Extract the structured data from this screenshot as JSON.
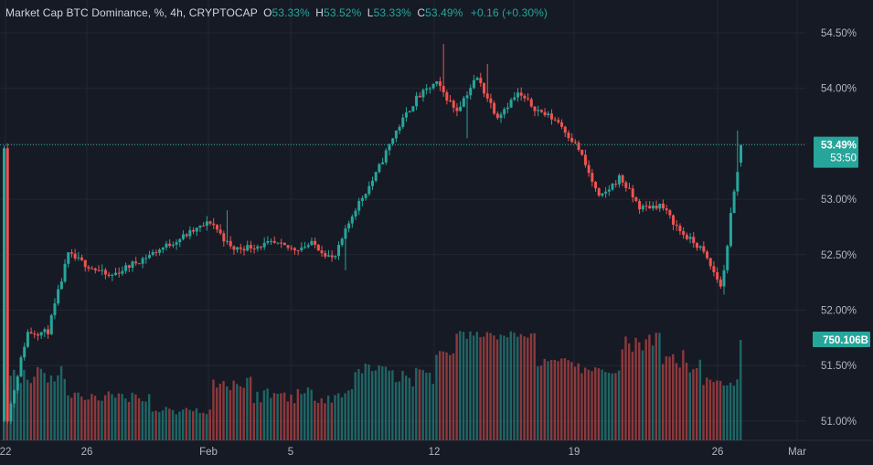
{
  "header": {
    "symbol": "Market Cap BTC Dominance, %, 4h, CRYPTOCAP",
    "open_label": "O",
    "open": "53.33%",
    "high_label": "H",
    "high": "53.52%",
    "low_label": "L",
    "low": "53.33%",
    "close_label": "C",
    "close": "53.49%",
    "change": "+0.16 (+0.30%)"
  },
  "price_axis": {
    "labels": [
      "54.50%",
      "54.00%",
      "53.50%",
      "53.00%",
      "52.50%",
      "52.00%",
      "51.50%",
      "51.00%"
    ],
    "last_price": "53.49%",
    "countdown": "53:50",
    "volume_label": "750.106B"
  },
  "time_axis": {
    "labels": [
      "22",
      "26",
      "Feb",
      "5",
      "12",
      "19",
      "26",
      "Mar"
    ]
  },
  "colors": {
    "up": "#26a69a",
    "down": "#ef5350",
    "background": "#161a25",
    "grid": "#232733"
  },
  "chart_data": {
    "type": "candlestick",
    "title": "Market Cap BTC Dominance, %, 4h, CRYPTOCAP",
    "y_unit": "%",
    "ylim": [
      50.9,
      54.72
    ],
    "x_range": [
      "Jan 22",
      "Feb 27"
    ],
    "grid": true,
    "series": [
      {
        "name": "Price",
        "anchors": [
          {
            "t": "Jan 22",
            "v": 51.0
          },
          {
            "t": "Jan 23",
            "v": 51.8
          },
          {
            "t": "Jan 24",
            "v": 51.8
          },
          {
            "t": "Jan 25",
            "v": 52.5
          },
          {
            "t": "Jan 27",
            "v": 52.3
          },
          {
            "t": "Jan 29",
            "v": 52.5
          },
          {
            "t": "Feb 1",
            "v": 52.8
          },
          {
            "t": "Feb 2",
            "v": 52.55
          },
          {
            "t": "Feb 4",
            "v": 52.6
          },
          {
            "t": "Feb 5",
            "v": 52.55
          },
          {
            "t": "Feb 6",
            "v": 52.6
          },
          {
            "t": "Feb 7",
            "v": 52.45
          },
          {
            "t": "Feb 8",
            "v": 52.9
          },
          {
            "t": "Feb 9",
            "v": 53.2
          },
          {
            "t": "Feb 10",
            "v": 53.6
          },
          {
            "t": "Feb 11",
            "v": 53.9
          },
          {
            "t": "Feb 12",
            "v": 54.05
          },
          {
            "t": "Feb 13",
            "v": 53.8
          },
          {
            "t": "Feb 14",
            "v": 54.1
          },
          {
            "t": "Feb 15",
            "v": 53.75
          },
          {
            "t": "Feb 16",
            "v": 53.95
          },
          {
            "t": "Feb 17",
            "v": 53.8
          },
          {
            "t": "Feb 18",
            "v": 53.7
          },
          {
            "t": "Feb 19",
            "v": 53.45
          },
          {
            "t": "Feb 20",
            "v": 53.0
          },
          {
            "t": "Feb 21",
            "v": 53.2
          },
          {
            "t": "Feb 22",
            "v": 52.92
          },
          {
            "t": "Feb 23",
            "v": 52.95
          },
          {
            "t": "Feb 24",
            "v": 52.7
          },
          {
            "t": "Feb 25",
            "v": 52.55
          },
          {
            "t": "Feb 26",
            "v": 52.2
          },
          {
            "t": "Feb 26.5",
            "v": 52.95
          },
          {
            "t": "Feb 27",
            "v": 53.49
          }
        ]
      },
      {
        "name": "Volume",
        "last": "750.106B"
      }
    ]
  }
}
